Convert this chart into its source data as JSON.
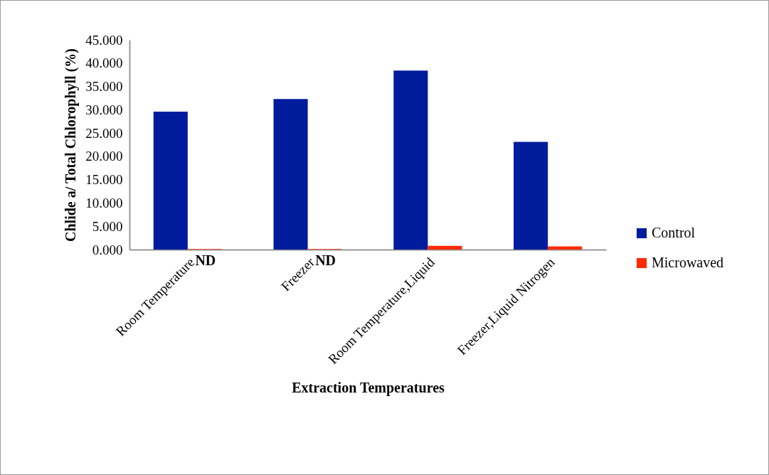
{
  "chart_data": {
    "type": "bar",
    "xlabel": "Extraction Temperatures",
    "ylabel": "Chlide a/ Total Chlorophyll (%)",
    "categories": [
      "Room Temperature",
      "Freezer",
      "Room Temperature,Liquid",
      "Freezer,Liquid Nitrogen"
    ],
    "series": [
      {
        "name": "Control",
        "color": "#001c9c",
        "values": [
          29.6,
          32.3,
          38.4,
          23.1
        ]
      },
      {
        "name": "Microwaved",
        "color": "#ff2a00",
        "values": [
          0.1,
          0.1,
          0.8,
          0.7
        ]
      }
    ],
    "ylim": [
      0,
      45
    ],
    "yticks": [
      {
        "value": 0,
        "label": "0.000"
      },
      {
        "value": 5,
        "label": "5.000"
      },
      {
        "value": 10,
        "label": "10.000"
      },
      {
        "value": 15,
        "label": "15.000"
      },
      {
        "value": 20,
        "label": "20.000"
      },
      {
        "value": 25,
        "label": "25.000"
      },
      {
        "value": 30,
        "label": "30.000"
      },
      {
        "value": 35,
        "label": "35.000"
      },
      {
        "value": 40,
        "label": "40.000"
      },
      {
        "value": 45,
        "label": "45.000"
      }
    ],
    "annotations": [
      {
        "text": "ND",
        "x": "Room Temperature",
        "y": 0
      },
      {
        "text": "ND",
        "x": "Freezer",
        "y": 0
      }
    ],
    "grid": false,
    "legend": "right"
  }
}
